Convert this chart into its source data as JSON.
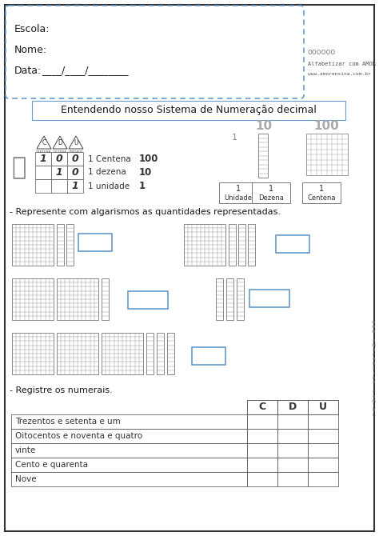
{
  "title": "Entendendo nosso Sistema de Numeração decimal",
  "escola_label": "Escola:",
  "nome_label": "Nome:",
  "data_label": "Data:",
  "data_line": "____/____/________",
  "website": "www.amorensina.com.br",
  "alfabetizar": "Alfabetizar com AMOR",
  "section1": "- Represente com algarismos as quantidades representadas.",
  "section2": "- Registre os numerais.",
  "table_headers": [
    "C",
    "D",
    "U"
  ],
  "table_rows": [
    "Trezentos e setenta e um",
    "Oitocentos e noventa e quatro",
    "vinte",
    "Cento e quarenta",
    "Nove"
  ],
  "centena_label": "1 Centena",
  "dezena_label": "1 dezena",
  "unidade_label": "1 unidade",
  "centena_val": "100",
  "dezena_val": "10",
  "unidade_val": "1",
  "unidade_box": "Unidade",
  "dezena_box": "Dezena",
  "centena_box": "Centena",
  "num10": "10",
  "num100": "100",
  "bg_color": "#ffffff",
  "border_color": "#333333",
  "blue_border": "#6699cc",
  "grid_color": "#999999",
  "text_color": "#1a1a1a",
  "light_gray": "#aaaaaa"
}
